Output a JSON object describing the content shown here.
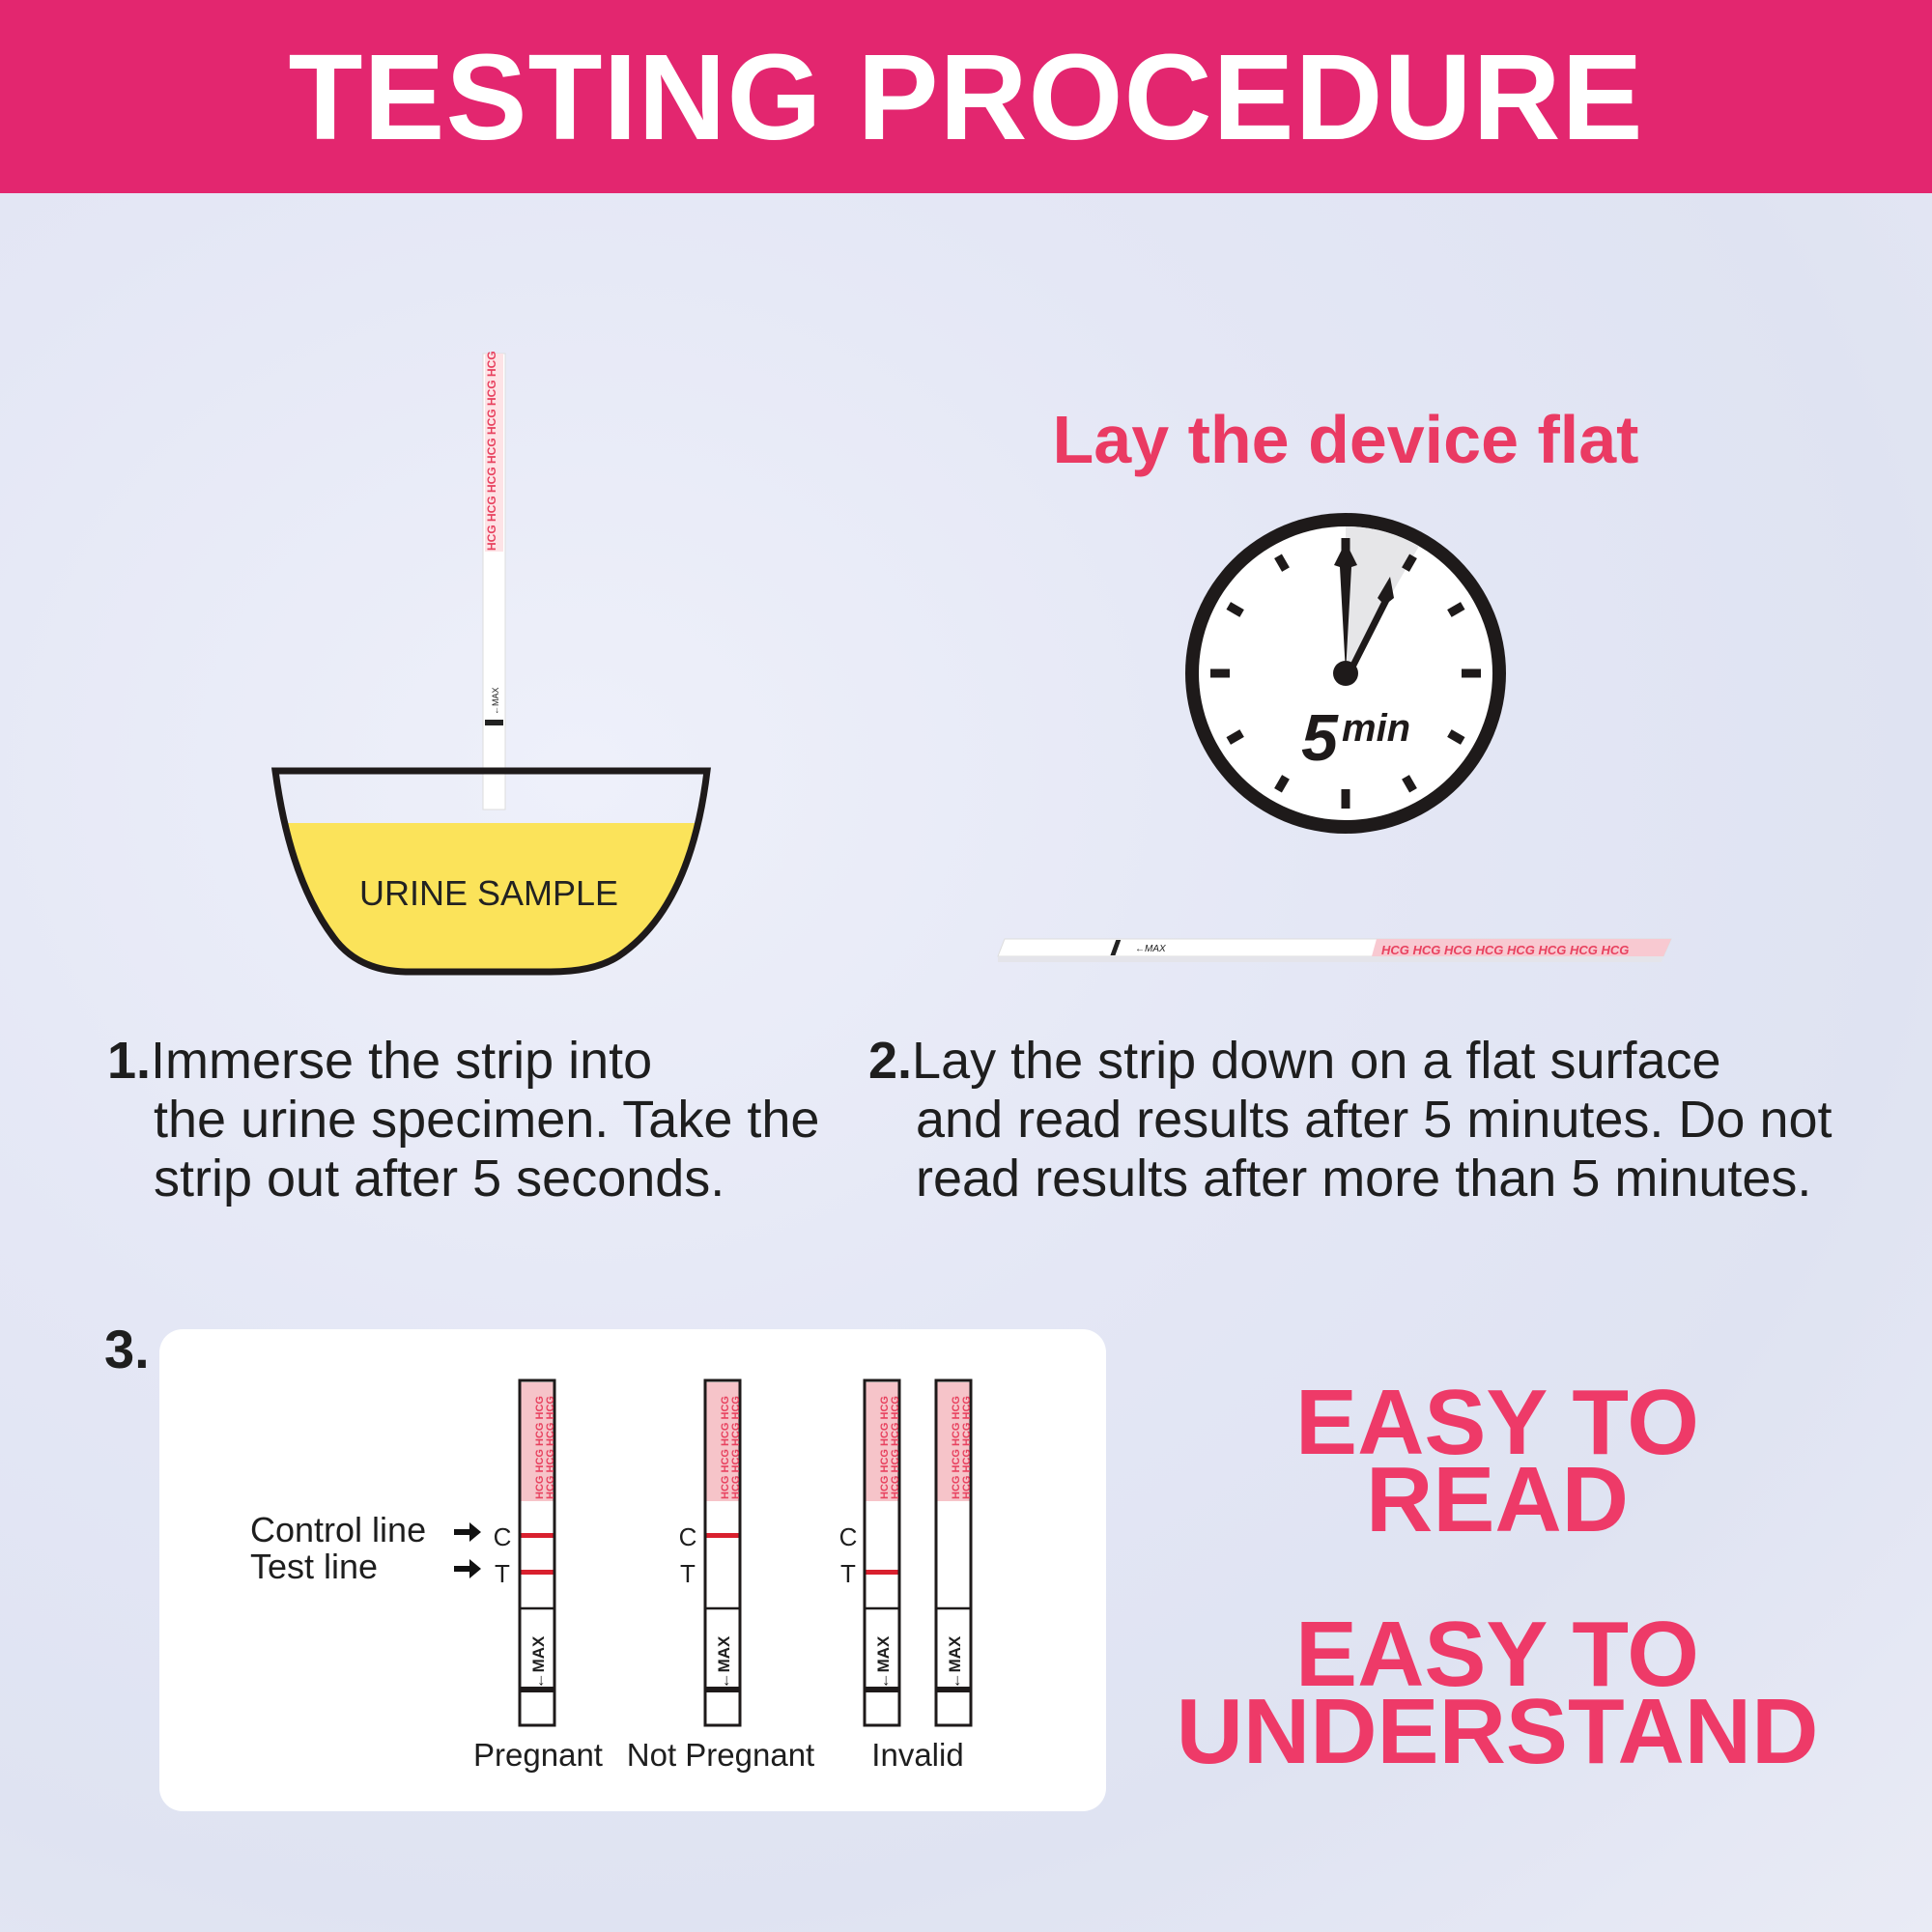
{
  "header": {
    "title": "TESTING PROCEDURE",
    "color": "#e3266f"
  },
  "step1": {
    "number": "1.",
    "lines": [
      "Immerse the strip into",
      "the urine specimen. Take the",
      "strip out after 5 seconds."
    ],
    "bowl_label": "URINE SAMPLE",
    "strip_text": "HCG",
    "max_label": "←MAX"
  },
  "step2": {
    "number": "2.",
    "heading": "Lay the device flat",
    "lines": [
      "Lay the strip down on a flat surface",
      "and read results after 5 minutes. Do not",
      "read results after more than 5 minutes."
    ],
    "clock_big": "5",
    "clock_unit": "min"
  },
  "step3": {
    "number": "3.",
    "control_label": "Control line",
    "test_label": "Test line",
    "c": "C",
    "t": "T",
    "results": [
      {
        "label": "Pregnant",
        "strips": [
          {
            "c": true,
            "t": true
          }
        ]
      },
      {
        "label": "Not Pregnant",
        "strips": [
          {
            "c": true,
            "t": false
          }
        ]
      },
      {
        "label": "Invalid",
        "strips": [
          {
            "c": false,
            "t": true
          },
          {
            "c": false,
            "t": false
          }
        ]
      }
    ]
  },
  "slogans": [
    [
      "EASY TO",
      "READ"
    ],
    [
      "EASY TO",
      "UNDERSTAND"
    ]
  ],
  "colors": {
    "accent": "#ee3a68",
    "line_red": "#d9202e",
    "urine": "#fbe35a"
  }
}
